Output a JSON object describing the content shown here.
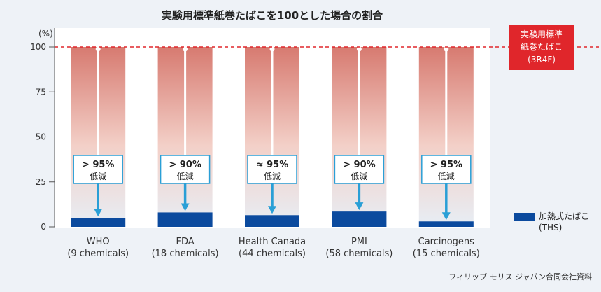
{
  "chart_data": {
    "type": "bar",
    "title": "実験用標準紙巻たばこを100とした場合の割合",
    "y_unit": "(%)",
    "ylim": [
      0,
      100
    ],
    "y_ticks": [
      0,
      25,
      50,
      75,
      100
    ],
    "categories": [
      "WHO",
      "FDA",
      "Health Canada",
      "PMI",
      "Carcinogens"
    ],
    "category_sublabels": [
      "(9 chemicals)",
      "(18 chemicals)",
      "(44 chemicals)",
      "(58 chemicals)",
      "(15 chemicals)"
    ],
    "series": [
      {
        "name": "実験用標準紙巻たばこ (3R4F)",
        "values": [
          100,
          100,
          100,
          100,
          100
        ]
      },
      {
        "name": "加熱式たばこ (THS)",
        "values": [
          5,
          8,
          6.5,
          8.5,
          3
        ]
      }
    ],
    "reduction_labels": [
      {
        "value": "> 95%",
        "text": "低減"
      },
      {
        "value": "> 90%",
        "text": "低減"
      },
      {
        "value": "≈ 95%",
        "text": "低減"
      },
      {
        "value": "> 90%",
        "text": "低減"
      },
      {
        "value": "> 95%",
        "text": "低減"
      }
    ],
    "reference_line": {
      "value": 100,
      "label_lines": [
        "実験用標準",
        "紙巻たばこ",
        "(3R4F)"
      ]
    },
    "legend": {
      "label_lines": [
        "加熱式たばこ",
        "(THS)"
      ],
      "placement": "right"
    },
    "source": "フィリップ モリス ジャパン合同会社資料",
    "colors": {
      "background": "#eef2f7",
      "panel": "#ffffff",
      "cigarette_top": "#d77a70",
      "cigarette_mid": "#f3d0c8",
      "cigarette_bottom": "#e7eef5",
      "ths_bar": "#0b4a9e",
      "arrow": "#2a9fd6",
      "reference": "#e0262b",
      "label_border": "#2a9fd6"
    }
  }
}
